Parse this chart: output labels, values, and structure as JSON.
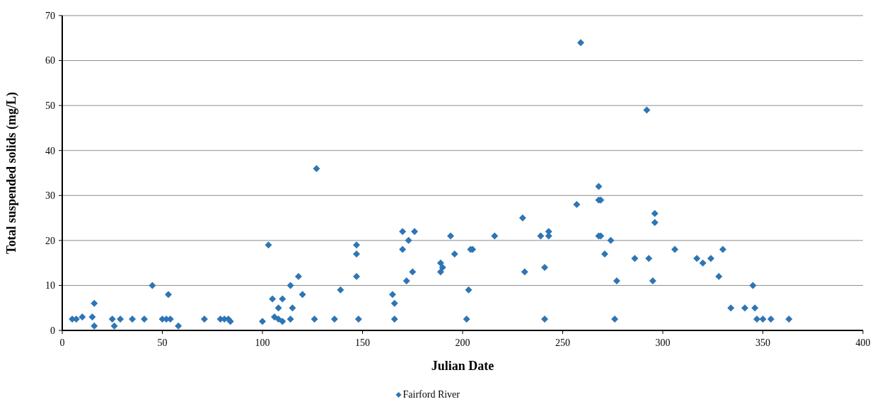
{
  "chart_data": {
    "type": "scatter",
    "xlabel": "Julian Date",
    "ylabel": "Total suspended solids (mg/L)",
    "xlim": [
      0,
      400
    ],
    "xticks": [
      0,
      50,
      100,
      150,
      200,
      250,
      300,
      350,
      400
    ],
    "ylim": [
      0,
      70
    ],
    "yticks": [
      0,
      10,
      20,
      30,
      40,
      50,
      60,
      70
    ],
    "grid": "y",
    "legend": "bottom",
    "marker": "diamond",
    "series": [
      {
        "name": "Fairford River",
        "color": "#2e75b6",
        "x": [
          5,
          7,
          10,
          15,
          16,
          16,
          25,
          26,
          29,
          35,
          41,
          45,
          50,
          52,
          53,
          54,
          58,
          71,
          79,
          81,
          83,
          84,
          100,
          103,
          105,
          106,
          108,
          108,
          110,
          110,
          114,
          114,
          115,
          118,
          120,
          126,
          127,
          136,
          139,
          147,
          147,
          147,
          148,
          165,
          166,
          166,
          170,
          170,
          172,
          173,
          175,
          176,
          189,
          189,
          190,
          194,
          196,
          202,
          203,
          204,
          205,
          216,
          230,
          231,
          239,
          241,
          241,
          243,
          243,
          257,
          259,
          268,
          268,
          269,
          268,
          269,
          271,
          274,
          276,
          277,
          286,
          292,
          293,
          295,
          296,
          296,
          306,
          317,
          320,
          324,
          328,
          330,
          334,
          341,
          345,
          346,
          347,
          350,
          354,
          363
        ],
        "values": [
          2.5,
          2.5,
          3,
          3,
          6,
          1,
          2.5,
          1,
          2.5,
          2.5,
          2.5,
          10,
          2.5,
          2.5,
          8,
          2.5,
          1,
          2.5,
          2.5,
          2.5,
          2.5,
          2,
          2,
          19,
          7,
          3,
          5,
          2.5,
          2,
          7,
          10,
          2.5,
          5,
          12,
          8,
          2.5,
          36,
          2.5,
          9,
          19,
          17,
          12,
          2.5,
          8,
          6,
          2.5,
          22,
          18,
          11,
          20,
          13,
          22,
          15,
          13,
          14,
          21,
          17,
          2.5,
          9,
          18,
          18,
          21,
          25,
          13,
          21,
          2.5,
          14,
          22,
          21,
          28,
          64,
          32,
          29,
          29,
          21,
          21,
          17,
          20,
          2.5,
          11,
          16,
          49,
          16,
          11,
          26,
          24,
          18,
          16,
          15,
          16,
          12,
          18,
          5,
          5,
          10,
          5,
          2.5,
          2.5,
          2.5,
          2.5
        ]
      }
    ]
  }
}
